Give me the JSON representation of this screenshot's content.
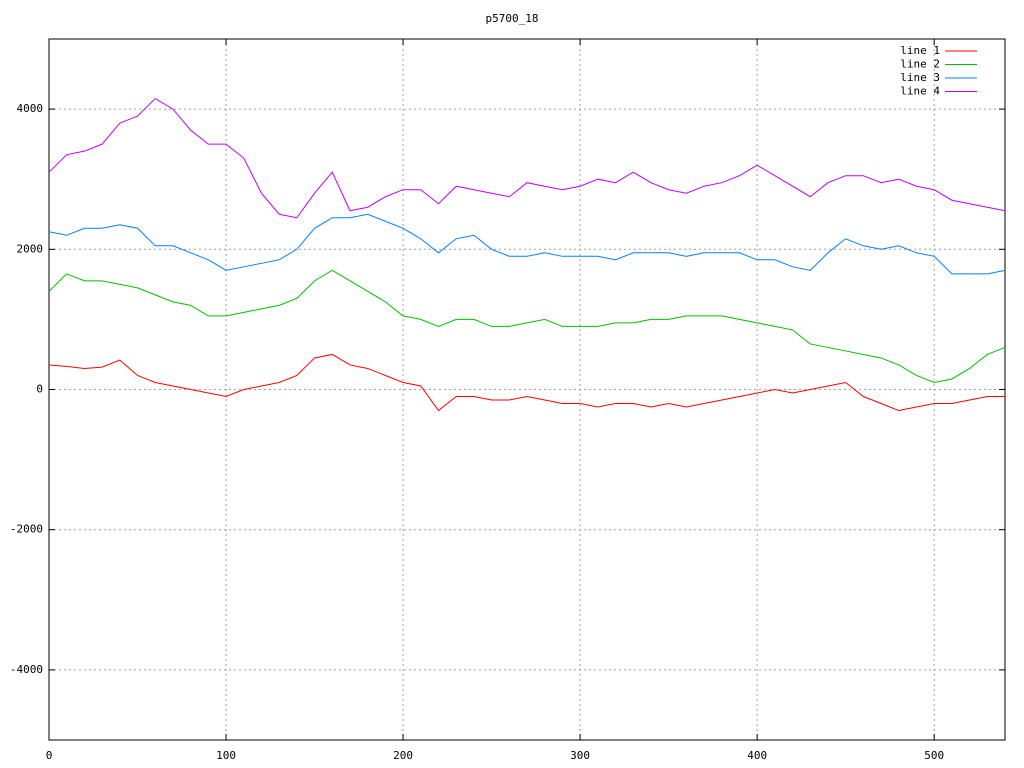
{
  "chart_data": {
    "type": "line",
    "title": "p5700_18",
    "x": [
      0,
      10,
      20,
      30,
      40,
      50,
      60,
      70,
      80,
      90,
      100,
      110,
      120,
      130,
      140,
      150,
      160,
      170,
      180,
      190,
      200,
      210,
      220,
      230,
      240,
      250,
      260,
      270,
      280,
      290,
      300,
      310,
      320,
      330,
      340,
      350,
      360,
      370,
      380,
      390,
      400,
      410,
      420,
      430,
      440,
      450,
      460,
      470,
      480,
      490,
      500,
      510,
      520,
      530,
      540
    ],
    "series": [
      {
        "name": "line 1",
        "color": "#ff0000",
        "values": [
          350,
          330,
          300,
          320,
          420,
          200,
          100,
          50,
          0,
          -50,
          -100,
          0,
          50,
          100,
          200,
          450,
          500,
          350,
          300,
          200,
          100,
          50,
          -300,
          -100,
          -100,
          -150,
          -150,
          -100,
          -150,
          -200,
          -200,
          -250,
          -200,
          -200,
          -250,
          -200,
          -250,
          -200,
          -150,
          -100,
          -50,
          0,
          -50,
          0,
          50,
          100,
          -100,
          -200,
          -300,
          -250,
          -200,
          -200,
          -150,
          -100,
          -100
        ]
      },
      {
        "name": "line 2",
        "color": "#00c000",
        "values": [
          1400,
          1650,
          1550,
          1550,
          1500,
          1450,
          1350,
          1250,
          1200,
          1050,
          1050,
          1100,
          1150,
          1200,
          1300,
          1550,
          1700,
          1550,
          1400,
          1250,
          1050,
          1000,
          900,
          1000,
          1000,
          900,
          900,
          950,
          1000,
          900,
          900,
          900,
          950,
          950,
          1000,
          1000,
          1050,
          1050,
          1050,
          1000,
          950,
          900,
          850,
          650,
          600,
          550,
          500,
          450,
          350,
          200,
          100,
          150,
          300,
          500,
          600
        ]
      },
      {
        "name": "line 3",
        "color": "#0080ff",
        "values": [
          2250,
          2200,
          2300,
          2300,
          2350,
          2300,
          2050,
          2050,
          1950,
          1850,
          1700,
          1750,
          1800,
          1850,
          2000,
          2300,
          2450,
          2450,
          2500,
          2400,
          2300,
          2150,
          1950,
          2150,
          2200,
          2000,
          1900,
          1900,
          1950,
          1900,
          1900,
          1900,
          1850,
          1950,
          1950,
          1950,
          1900,
          1950,
          1950,
          1950,
          1850,
          1850,
          1750,
          1700,
          1950,
          2150,
          2050,
          2000,
          2050,
          1950,
          1900,
          1650,
          1650,
          1650,
          1700
        ]
      },
      {
        "name": "line 4",
        "color": "#c000ff",
        "values": [
          3100,
          3350,
          3400,
          3500,
          3800,
          3900,
          4150,
          4000,
          3700,
          3500,
          3500,
          3300,
          2800,
          2500,
          2450,
          2800,
          3100,
          2550,
          2600,
          2750,
          2850,
          2850,
          2650,
          2900,
          2850,
          2800,
          2750,
          2950,
          2900,
          2850,
          2900,
          3000,
          2950,
          3100,
          2950,
          2850,
          2800,
          2900,
          2950,
          3050,
          3200,
          3050,
          2900,
          2750,
          2950,
          3050,
          3050,
          2950,
          3000,
          2900,
          2850,
          2700,
          2650,
          2600,
          2550
        ]
      }
    ],
    "xlim": [
      0,
      540
    ],
    "ylim": [
      -5000,
      5000
    ],
    "xticks": [
      0,
      100,
      200,
      300,
      400,
      500
    ],
    "yticks": [
      -4000,
      -2000,
      0,
      2000,
      4000
    ],
    "grid": true,
    "legend": "top-right"
  }
}
